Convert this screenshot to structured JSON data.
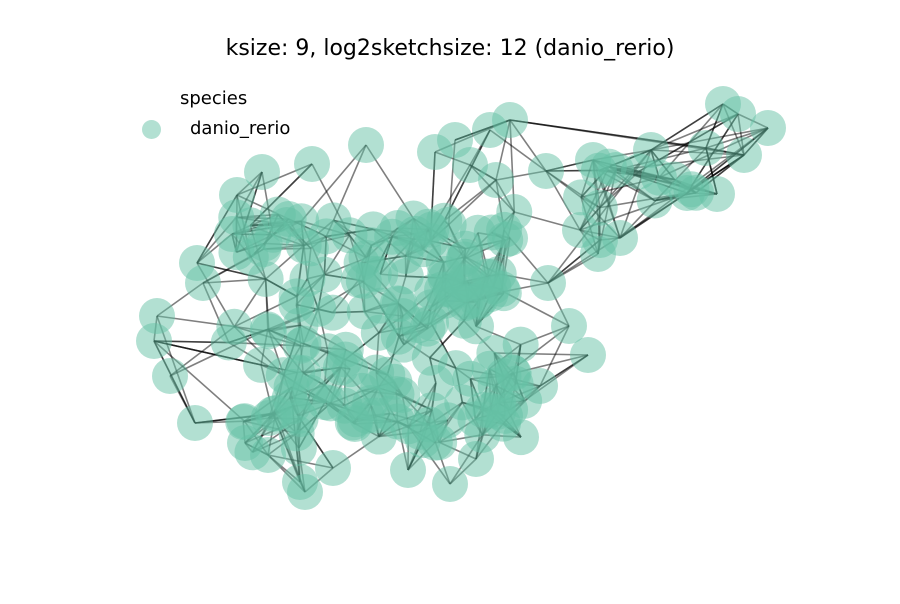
{
  "figure": {
    "title": "ksize: 9, log2sketchsize: 12 (danio_rerio)",
    "node_color": "#66c2a5",
    "edge_color": "#000000",
    "legend": {
      "title": "species",
      "items": [
        {
          "label": "danio_rerio",
          "color": "#66c2a5"
        }
      ]
    }
  }
}
